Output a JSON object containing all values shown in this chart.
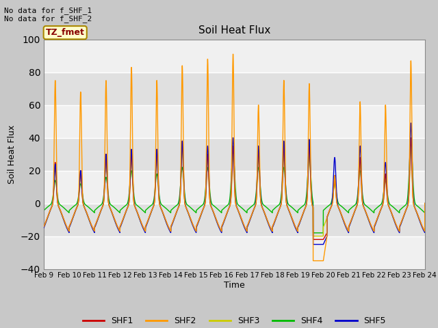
{
  "title": "Soil Heat Flux",
  "xlabel": "Time",
  "ylabel": "Soil Heat Flux",
  "ylim": [
    -40,
    100
  ],
  "yticks": [
    -40,
    -20,
    0,
    20,
    40,
    60,
    80,
    100
  ],
  "xtick_labels": [
    "Feb 9",
    "Feb 10",
    "Feb 11",
    "Feb 12",
    "Feb 13",
    "Feb 14",
    "Feb 15",
    "Feb 16",
    "Feb 17",
    "Feb 18",
    "Feb 19",
    "Feb 20",
    "Feb 21",
    "Feb 22",
    "Feb 23",
    "Feb 24"
  ],
  "colors": {
    "SHF1": "#cc0000",
    "SHF2": "#ff9900",
    "SHF3": "#cccc00",
    "SHF4": "#00bb00",
    "SHF5": "#0000cc"
  },
  "annotation_text": "No data for f_SHF_1\nNo data for f_SHF_2",
  "legend_label": "TZ_fmet",
  "legend_box_color": "#ffffcc",
  "legend_box_border": "#aa8800",
  "fig_bg_color": "#c8c8c8",
  "plot_bg_light": "#f0f0f0",
  "plot_bg_dark": "#e0e0e0",
  "grid_color": "#ffffff",
  "n_days": 15,
  "points_per_day": 288,
  "shf2_peaks": [
    75,
    68,
    75,
    83,
    75,
    84,
    88,
    91,
    60,
    75,
    73,
    17,
    62,
    60,
    87
  ],
  "shf1_peaks": [
    25,
    20,
    30,
    32,
    33,
    38,
    30,
    35,
    32,
    35,
    37,
    17,
    28,
    18,
    40
  ],
  "shf3_peaks": [
    22,
    18,
    27,
    30,
    30,
    34,
    28,
    30,
    28,
    30,
    33,
    15,
    25,
    16,
    35
  ],
  "shf4_peaks": [
    14,
    12,
    16,
    20,
    18,
    22,
    22,
    32,
    22,
    22,
    29,
    12,
    20,
    14,
    38
  ],
  "shf5_peaks": [
    24,
    20,
    30,
    33,
    33,
    38,
    35,
    40,
    35,
    38,
    39,
    28,
    35,
    25,
    49
  ]
}
